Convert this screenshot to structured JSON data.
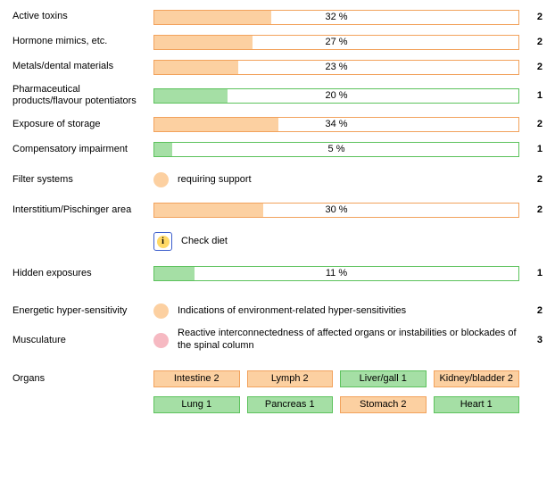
{
  "colors": {
    "orange_fill": "#fcd0a1",
    "orange_border": "#f2a25c",
    "green_fill": "#a5dfa5",
    "green_border": "#5cc25c",
    "pink_fill": "#f6b9c2"
  },
  "bars": [
    {
      "label": "Active toxins",
      "pct": 32,
      "text": "32 %",
      "count": "2",
      "color": "orange"
    },
    {
      "label": "Hormone mimics, etc.",
      "pct": 27,
      "text": "27 %",
      "count": "2",
      "color": "orange"
    },
    {
      "label": "Metals/dental materials",
      "pct": 23,
      "text": "23 %",
      "count": "2",
      "color": "orange"
    },
    {
      "label": "Pharmaceutical products/flavour potentiators",
      "pct": 20,
      "text": "20 %",
      "count": "1",
      "color": "green"
    },
    {
      "label": "Exposure of storage",
      "pct": 34,
      "text": "34 %",
      "count": "2",
      "color": "orange"
    },
    {
      "label": "Compensatory impairment",
      "pct": 5,
      "text": "5 %",
      "count": "1",
      "color": "green"
    }
  ],
  "filter": {
    "label": "Filter systems",
    "text": "requiring support",
    "count": "2",
    "dot_color": "orange"
  },
  "interstitium": {
    "label": "Interstitium/Pischinger area",
    "pct": 30,
    "text": "30 %",
    "count": "2",
    "color": "orange"
  },
  "info": {
    "label": "",
    "text": "Check diet"
  },
  "hidden": {
    "label": "Hidden exposures",
    "pct": 11,
    "text": "11 %",
    "count": "1",
    "color": "green"
  },
  "sensitivity": [
    {
      "label": "Energetic hyper-sensitivity",
      "text": "Indications of environment-related hyper-sensitivities",
      "count": "2",
      "dot_color": "orange"
    },
    {
      "label": "Musculature",
      "text": "Reactive interconnectedness of affected organs or instabilities or blockades of the spinal column",
      "count": "3",
      "dot_color": "pink"
    }
  ],
  "organs": {
    "label": "Organs",
    "row1": [
      {
        "text": "Intestine 2",
        "color": "orange"
      },
      {
        "text": "Lymph 2",
        "color": "orange"
      },
      {
        "text": "Liver/gall 1",
        "color": "green"
      },
      {
        "text": "Kidney/bladder 2",
        "color": "orange"
      }
    ],
    "row2": [
      {
        "text": "Lung 1",
        "color": "green"
      },
      {
        "text": "Pancreas 1",
        "color": "green"
      },
      {
        "text": "Stomach 2",
        "color": "orange"
      },
      {
        "text": "Heart 1",
        "color": "green"
      }
    ]
  }
}
